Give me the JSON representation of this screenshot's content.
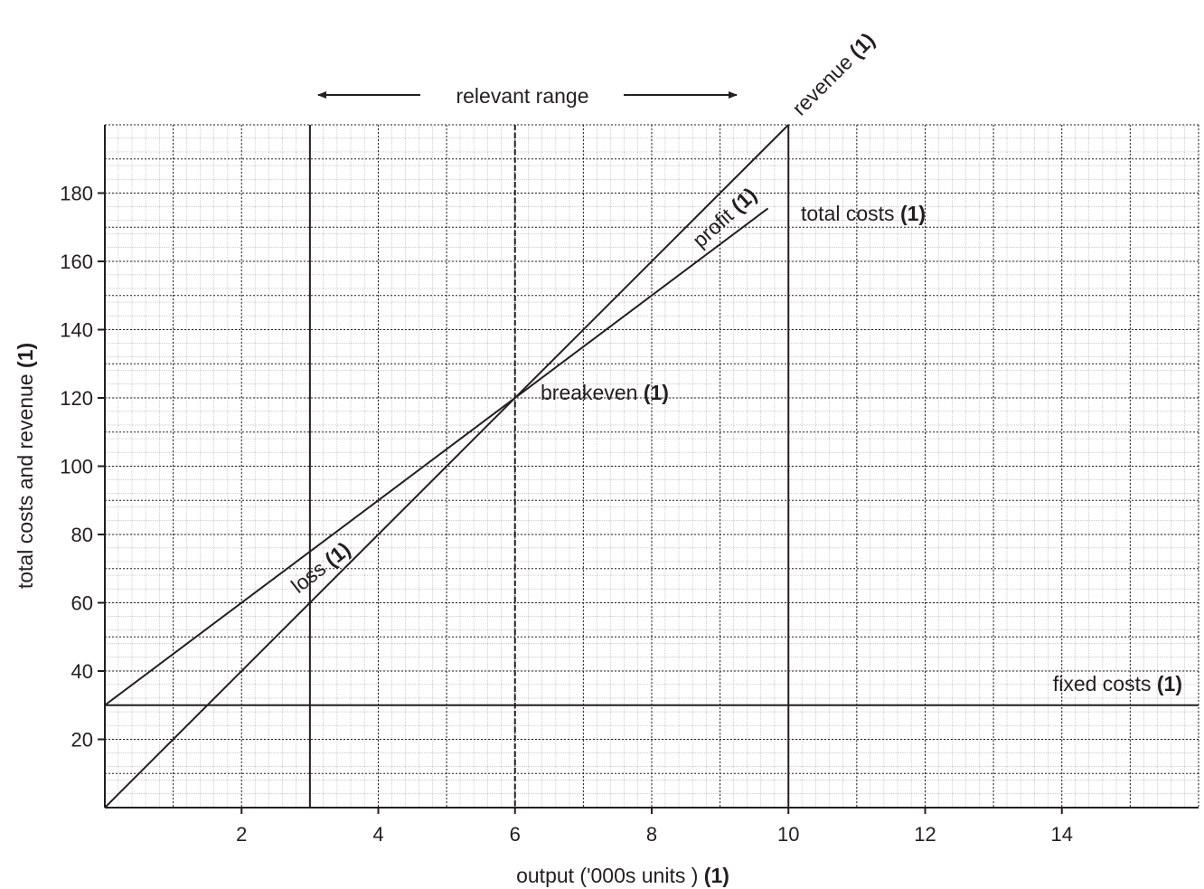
{
  "chart_data": {
    "type": "line",
    "title": "",
    "xlabel": "output ('000s units )",
    "xlabel_mark": "(1)",
    "ylabel": "total costs and revenue",
    "ylabel_mark": "(1)",
    "xlim": [
      0,
      16
    ],
    "ylim": [
      0,
      200
    ],
    "x_ticks": [
      2,
      4,
      6,
      8,
      10,
      12,
      14
    ],
    "y_ticks": [
      20,
      40,
      60,
      80,
      100,
      120,
      140,
      160,
      180
    ],
    "grid": true,
    "series": [
      {
        "key": "revenue",
        "name": "revenue",
        "mark": "(1)",
        "x": [
          0,
          10
        ],
        "y": [
          0,
          200
        ]
      },
      {
        "key": "total_costs",
        "name": "total costs",
        "mark": "(1)",
        "x": [
          0,
          9.7
        ],
        "y": [
          30,
          175.5
        ]
      },
      {
        "key": "fixed_costs",
        "name": "fixed costs",
        "mark": "(1)",
        "x": [
          0,
          16
        ],
        "y": [
          30,
          30
        ]
      }
    ],
    "vertical_lines": [
      {
        "x": 3,
        "style": "solid"
      },
      {
        "x": 6,
        "style": "dashed"
      },
      {
        "x": 10,
        "style": "solid"
      }
    ],
    "annotations": {
      "relevant_range": {
        "text": "relevant range",
        "x_from": 3,
        "x_to": 10
      },
      "breakeven": {
        "text": "breakeven",
        "mark": "(1)",
        "x": 6,
        "y": 120
      },
      "profit": {
        "text": "profit",
        "mark": "(1)"
      },
      "loss": {
        "text": "loss",
        "mark": "(1)"
      }
    }
  }
}
